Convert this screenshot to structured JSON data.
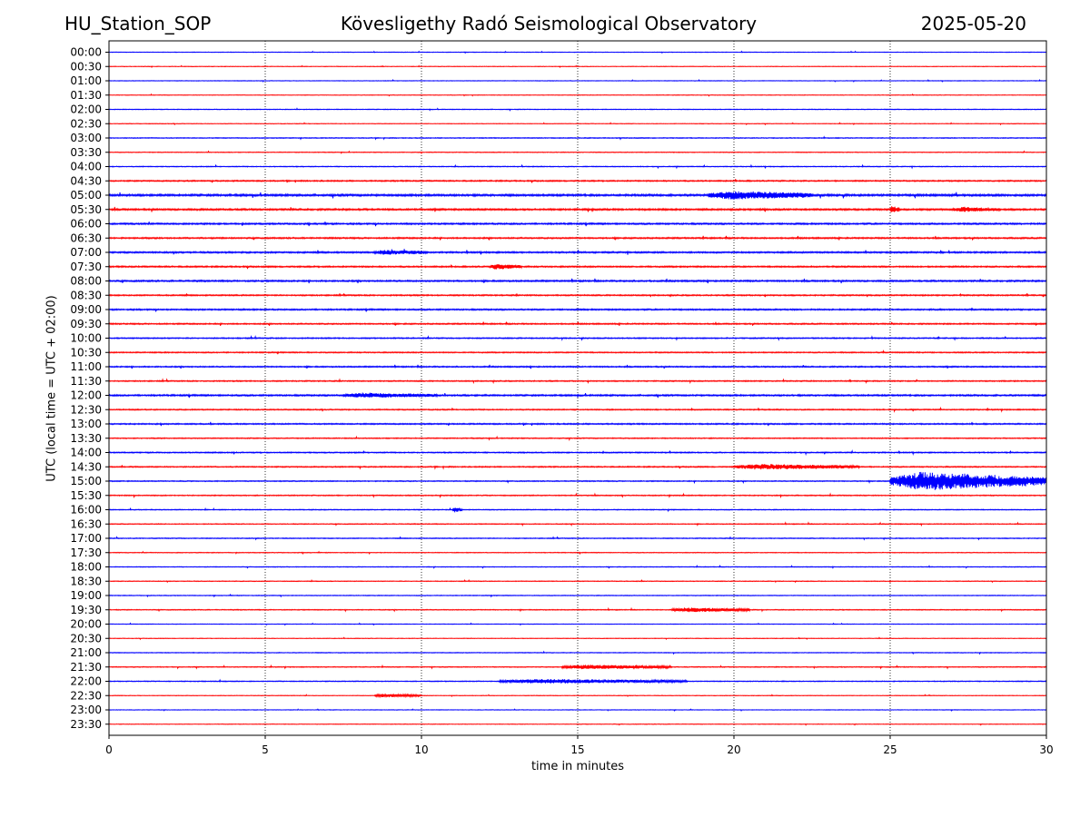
{
  "header": {
    "station": "HU_Station_SOP",
    "observatory": "Kövesligethy Radó Seismological Observatory",
    "date": "2025-05-20"
  },
  "chart_data": {
    "type": "line",
    "title": "Kövesligethy Radó Seismological Observatory",
    "xlabel": "time in minutes",
    "ylabel": "UTC (local time = UTC + 02:00)",
    "xlim": [
      0,
      30
    ],
    "xticks": [
      0,
      5,
      10,
      15,
      20,
      25,
      30
    ],
    "grid": "vertical dotted lines at x = 5, 10, 15, 20, 25",
    "legend": "none",
    "colors": {
      "even_rows": "#0000ff",
      "odd_rows": "#ff0000",
      "axis": "#000000",
      "grid": "#000000"
    },
    "rows": [
      "00:00",
      "00:30",
      "01:00",
      "01:30",
      "02:00",
      "02:30",
      "03:00",
      "03:30",
      "04:00",
      "04:30",
      "05:00",
      "05:30",
      "06:00",
      "06:30",
      "07:00",
      "07:30",
      "08:00",
      "08:30",
      "09:00",
      "09:30",
      "10:00",
      "10:30",
      "11:00",
      "11:30",
      "12:00",
      "12:30",
      "13:00",
      "13:30",
      "14:00",
      "14:30",
      "15:00",
      "15:30",
      "16:00",
      "16:30",
      "17:00",
      "17:30",
      "18:00",
      "18:30",
      "19:00",
      "19:30",
      "20:00",
      "20:30",
      "21:00",
      "21:30",
      "22:00",
      "22:30",
      "23:00",
      "23:30"
    ],
    "noise_level": [
      0.2,
      0.2,
      0.2,
      0.2,
      0.25,
      0.2,
      0.3,
      0.25,
      0.3,
      0.45,
      0.7,
      0.6,
      0.55,
      0.5,
      0.55,
      0.5,
      0.55,
      0.45,
      0.5,
      0.45,
      0.4,
      0.4,
      0.45,
      0.4,
      0.55,
      0.4,
      0.45,
      0.35,
      0.4,
      0.4,
      0.35,
      0.35,
      0.3,
      0.3,
      0.3,
      0.25,
      0.25,
      0.25,
      0.25,
      0.3,
      0.2,
      0.2,
      0.25,
      0.3,
      0.3,
      0.2,
      0.2,
      0.2
    ],
    "events": [
      {
        "row": "05:00",
        "start_min": 19.2,
        "end_min": 22.5,
        "amplitude": 0.9
      },
      {
        "row": "05:30",
        "start_min": 25.0,
        "end_min": 25.3,
        "amplitude": 0.8
      },
      {
        "row": "05:30",
        "start_min": 27.0,
        "end_min": 28.5,
        "amplitude": 0.5
      },
      {
        "row": "07:00",
        "start_min": 8.5,
        "end_min": 10.2,
        "amplitude": 0.5
      },
      {
        "row": "07:30",
        "start_min": 12.2,
        "end_min": 13.2,
        "amplitude": 0.6
      },
      {
        "row": "12:00",
        "start_min": 7.5,
        "end_min": 10.5,
        "amplitude": 0.5
      },
      {
        "row": "14:30",
        "start_min": 20.0,
        "end_min": 24.0,
        "amplitude": 0.6
      },
      {
        "row": "15:00",
        "start_min": 25.0,
        "end_min": 30.0,
        "amplitude": 2.2
      },
      {
        "row": "16:00",
        "start_min": 11.0,
        "end_min": 11.3,
        "amplitude": 0.6
      },
      {
        "row": "19:30",
        "start_min": 18.0,
        "end_min": 20.5,
        "amplitude": 0.5
      },
      {
        "row": "21:30",
        "start_min": 14.5,
        "end_min": 18.0,
        "amplitude": 0.5
      },
      {
        "row": "22:00",
        "start_min": 12.5,
        "end_min": 18.5,
        "amplitude": 0.5
      },
      {
        "row": "22:30",
        "start_min": 8.5,
        "end_min": 10.0,
        "amplitude": 0.4
      }
    ]
  }
}
